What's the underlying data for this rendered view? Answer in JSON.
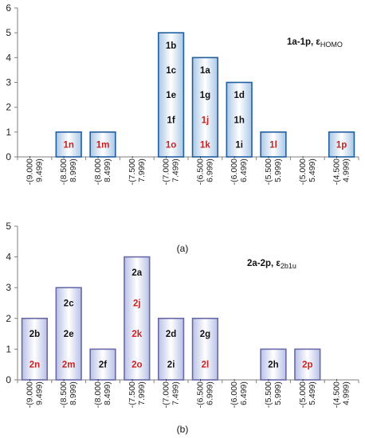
{
  "chart_data": [
    {
      "type": "bar",
      "caption": "(a)",
      "annotation": {
        "main": "1a-1p, ε",
        "sub": "HOMO"
      },
      "categories": [
        "-(9.000-\n9.499)",
        "-(8.500-\n8.999)",
        "-(8.000-\n8.499)",
        "-(7.500-\n7.999)",
        "-(7.000-\n7.499)",
        "-(6.500-\n6.999)",
        "-(6.000-\n6.499)",
        "-(5.500-\n5.999)",
        "-(5.000-\n5.499)",
        "-(4.500-\n4.999)"
      ],
      "values": [
        0,
        1,
        1,
        0,
        5,
        4,
        3,
        1,
        0,
        1
      ],
      "bar_labels": [
        [],
        [
          {
            "t": "1n",
            "c": "red"
          }
        ],
        [
          {
            "t": "1m",
            "c": "red"
          }
        ],
        [],
        [
          {
            "t": "1b",
            "c": "black"
          },
          {
            "t": "1c",
            "c": "black"
          },
          {
            "t": "1e",
            "c": "black"
          },
          {
            "t": "1f",
            "c": "black"
          },
          {
            "t": "1o",
            "c": "red"
          }
        ],
        [
          {
            "t": "1a",
            "c": "black"
          },
          {
            "t": "1g",
            "c": "black"
          },
          {
            "t": "1j",
            "c": "red"
          },
          {
            "t": "1k",
            "c": "red"
          }
        ],
        [
          {
            "t": "1d",
            "c": "black"
          },
          {
            "t": "1h",
            "c": "black"
          },
          {
            "t": "1i",
            "c": "black"
          }
        ],
        [
          {
            "t": "1l",
            "c": "red"
          }
        ],
        [],
        [
          {
            "t": "1p",
            "c": "red"
          }
        ]
      ],
      "ylim": [
        0,
        6
      ],
      "yticks": [
        "0",
        "1",
        "2",
        "3",
        "4",
        "5",
        "6"
      ],
      "bar_border": "#1f5fa0",
      "grid": false
    },
    {
      "type": "bar",
      "caption": "(b)",
      "annotation": {
        "main": "2a-2p, ε",
        "sub": "2b1u"
      },
      "categories": [
        "-(9.000-\n9.499)",
        "-(8.500-\n8.999)",
        "-(8.000-\n8.499)",
        "-(7.500-\n7.999)",
        "-(7.000-\n7.499)",
        "-(6.500-\n6.999)",
        "-(6.000-\n6.499)",
        "-(5.500-\n5.999)",
        "-(5.000-\n5.499)",
        "-(4.500-\n4.999)"
      ],
      "values": [
        2,
        3,
        1,
        4,
        2,
        2,
        0,
        1,
        1,
        0
      ],
      "bar_labels": [
        [
          {
            "t": "2b",
            "c": "black"
          },
          {
            "t": "2n",
            "c": "red"
          }
        ],
        [
          {
            "t": "2c",
            "c": "black"
          },
          {
            "t": "2e",
            "c": "black"
          },
          {
            "t": "2m",
            "c": "red"
          }
        ],
        [
          {
            "t": "2f",
            "c": "black"
          }
        ],
        [
          {
            "t": "2a",
            "c": "black"
          },
          {
            "t": "2j",
            "c": "red"
          },
          {
            "t": "2k",
            "c": "red"
          },
          {
            "t": "2o",
            "c": "red"
          }
        ],
        [
          {
            "t": "2d",
            "c": "black"
          },
          {
            "t": "2i",
            "c": "black"
          }
        ],
        [
          {
            "t": "2g",
            "c": "black"
          },
          {
            "t": "2l",
            "c": "red"
          }
        ],
        [],
        [
          {
            "t": "2h",
            "c": "black"
          }
        ],
        [
          {
            "t": "2p",
            "c": "red"
          }
        ],
        []
      ],
      "ylim": [
        0,
        5
      ],
      "yticks": [
        "0",
        "1",
        "2",
        "3",
        "4",
        "5"
      ],
      "bar_border": "#6a6aa8",
      "grid": false
    }
  ]
}
